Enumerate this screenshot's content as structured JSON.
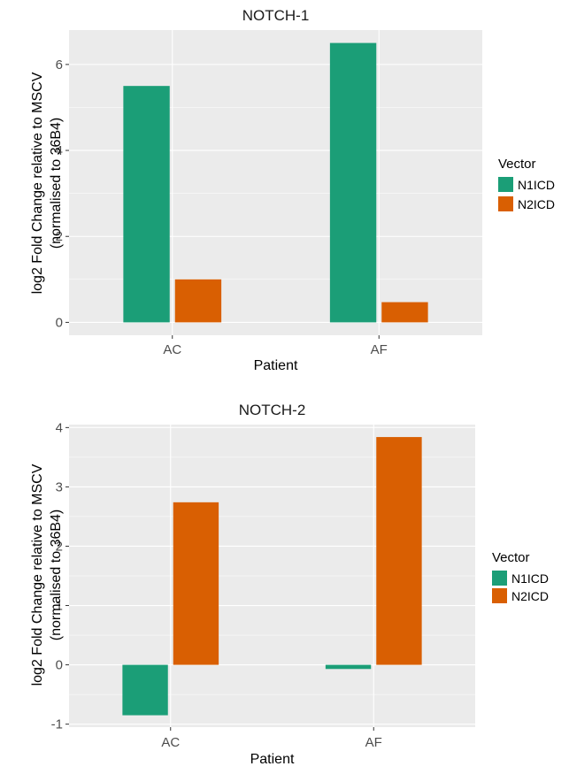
{
  "chart_data": [
    {
      "type": "bar",
      "title": "NOTCH-1",
      "xlabel": "Patient",
      "ylabel": "log2 Fold Change relative to MSCV",
      "ylabel2": "(normalised to 36B4)",
      "categories": [
        "AC",
        "AF"
      ],
      "series": [
        {
          "name": "N1ICD",
          "values": [
            5.5,
            6.5
          ]
        },
        {
          "name": "N2ICD",
          "values": [
            1.0,
            0.47
          ]
        }
      ],
      "ylim": [
        -0.3,
        6.8
      ],
      "yticks": [
        0,
        2,
        4,
        6
      ],
      "grid": true,
      "legend_title": "Vector",
      "legend_position": "right"
    },
    {
      "type": "bar",
      "title": "NOTCH-2",
      "xlabel": "Patient",
      "ylabel": "log2 Fold Change relative to MSCV",
      "ylabel2": "(normalised to 36B4)",
      "categories": [
        "AC",
        "AF"
      ],
      "series": [
        {
          "name": "N1ICD",
          "values": [
            -0.85,
            -0.07
          ]
        },
        {
          "name": "N2ICD",
          "values": [
            2.74,
            3.84
          ]
        }
      ],
      "ylim": [
        -1.05,
        4.05
      ],
      "yticks": [
        -1,
        0,
        1,
        2,
        3,
        4
      ],
      "grid": true,
      "legend_title": "Vector",
      "legend_position": "right"
    }
  ],
  "colors": {
    "N1ICD": "#1b9e77",
    "N2ICD": "#d95f02",
    "panel_bg": "#ebebeb",
    "grid": "#ffffff"
  }
}
